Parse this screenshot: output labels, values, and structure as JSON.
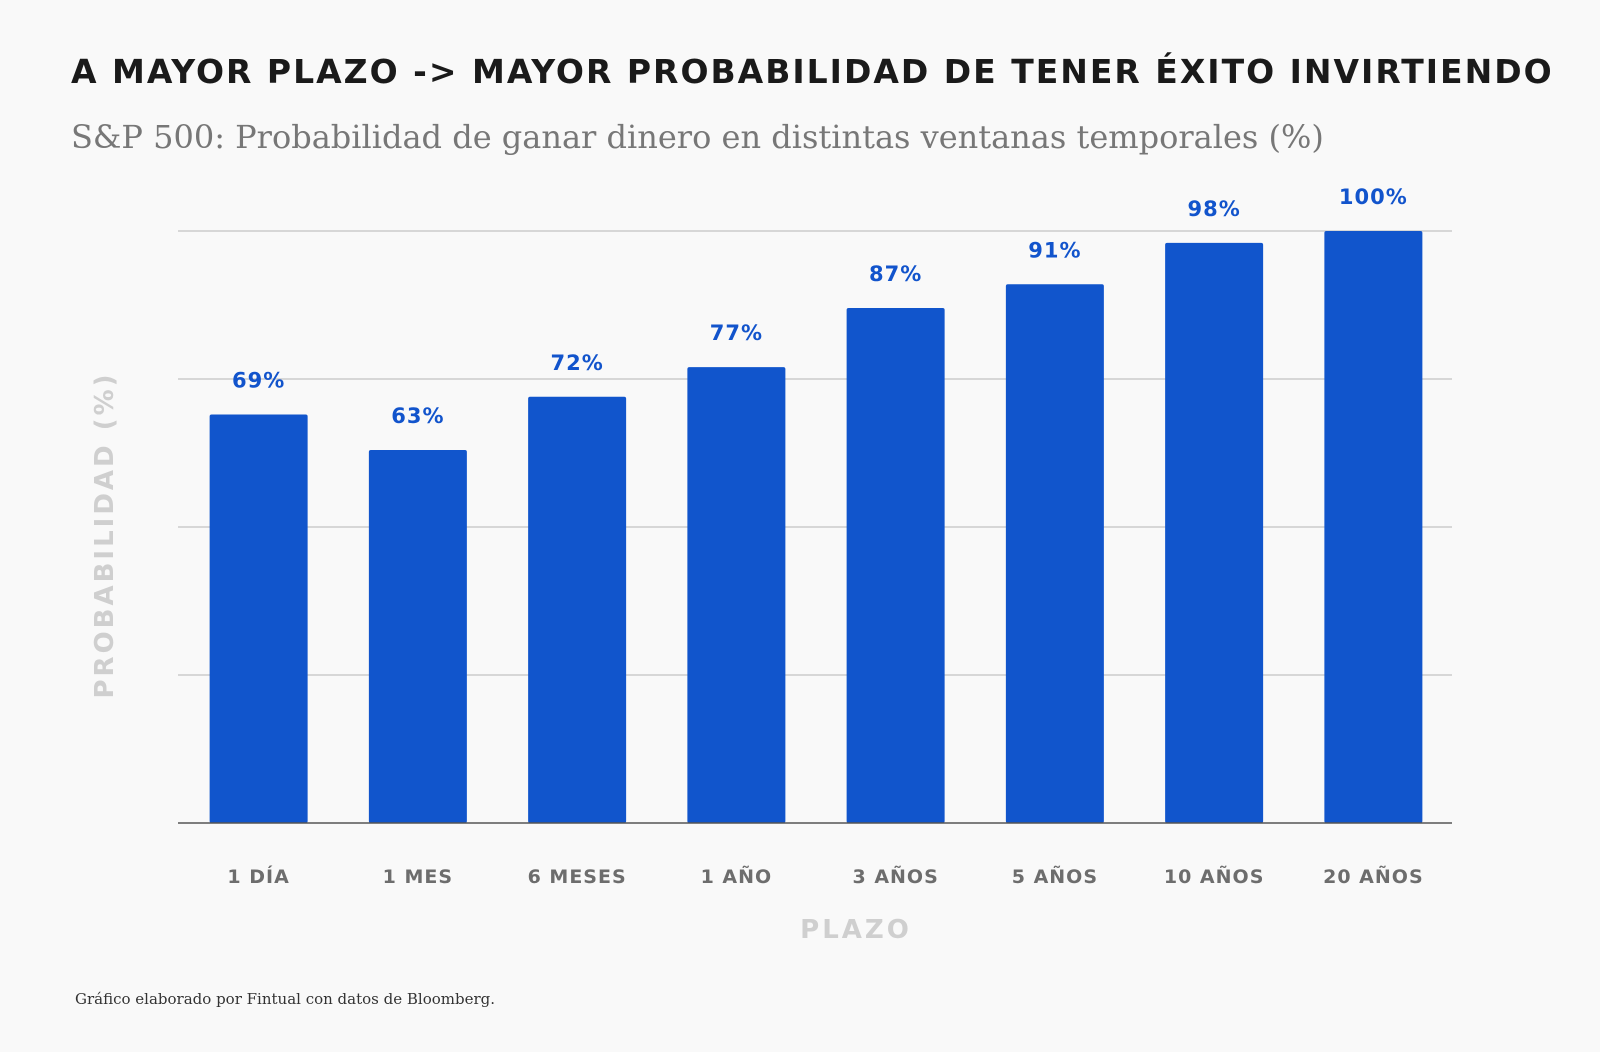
{
  "title": "A MAYOR PLAZO -> MAYOR PROBABILIDAD DE TENER ÉXITO INVIRTIENDO",
  "subtitle": "S&P 500: Probabilidad de ganar dinero en distintas ventanas temporales (%)",
  "footnote": "Gráfico elaborado por Fintual con datos de Bloomberg.",
  "colors": {
    "bar": "#1155cc",
    "value_label": "#1254cc",
    "grid": "#cccccc",
    "axis": "#555555"
  },
  "chart_data": {
    "type": "bar",
    "title": "A MAYOR PLAZO -> MAYOR PROBABILIDAD DE TENER ÉXITO INVIRTIENDO",
    "subtitle": "S&P 500: Probabilidad de ganar dinero en distintas ventanas temporales (%)",
    "xlabel": "PLAZO",
    "ylabel": "PROBABILIDAD (%)",
    "categories": [
      "1 DÍA",
      "1 MES",
      "6 MESES",
      "1 AÑO",
      "3 AÑOS",
      "5 AÑOS",
      "10 AÑOS",
      "20 AÑOS"
    ],
    "values": [
      69,
      63,
      72,
      77,
      87,
      91,
      98,
      100
    ],
    "value_labels": [
      "69%",
      "63%",
      "72%",
      "77%",
      "87%",
      "91%",
      "98%",
      "100%"
    ],
    "ylim": [
      0,
      100
    ],
    "grid": true,
    "legend": "none"
  }
}
